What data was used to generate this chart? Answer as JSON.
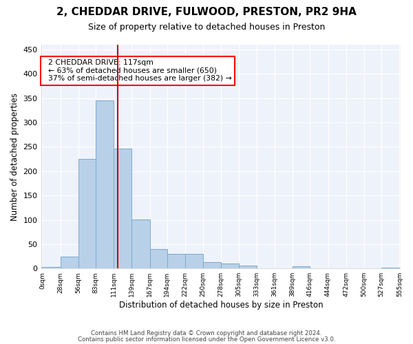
{
  "title1": "2, CHEDDAR DRIVE, FULWOOD, PRESTON, PR2 9HA",
  "title2": "Size of property relative to detached houses in Preston",
  "xlabel": "Distribution of detached houses by size in Preston",
  "ylabel": "Number of detached properties",
  "annotation_line1": "2 CHEDDAR DRIVE: 117sqm",
  "annotation_line2": "← 63% of detached houses are smaller (650)",
  "annotation_line3": "37% of semi-detached houses are larger (382) →",
  "property_size": 117,
  "bin_edges": [
    0,
    28,
    56,
    83,
    111,
    139,
    167,
    194,
    222,
    250,
    278,
    305,
    333,
    361,
    389,
    416,
    444,
    472,
    500,
    527,
    555
  ],
  "bin_labels": [
    "0sqm",
    "28sqm",
    "56sqm",
    "83sqm",
    "111sqm",
    "139sqm",
    "167sqm",
    "194sqm",
    "222sqm",
    "250sqm",
    "278sqm",
    "305sqm",
    "333sqm",
    "361sqm",
    "389sqm",
    "416sqm",
    "444sqm",
    "472sqm",
    "500sqm",
    "527sqm",
    "555sqm"
  ],
  "counts": [
    3,
    24,
    225,
    345,
    247,
    101,
    40,
    30,
    30,
    13,
    10,
    6,
    0,
    0,
    5,
    0,
    0,
    0,
    0,
    2
  ],
  "bar_color": "#b8d0e8",
  "bar_edge_color": "#7aaacf",
  "line_color": "#cc0000",
  "ylim": [
    0,
    460
  ],
  "yticks": [
    0,
    50,
    100,
    150,
    200,
    250,
    300,
    350,
    400,
    450
  ],
  "footer1": "Contains HM Land Registry data © Crown copyright and database right 2024.",
  "footer2": "Contains public sector information licensed under the Open Government Licence v3.0.",
  "bg_color": "#ffffff",
  "plot_bg_color": "#eef2fb"
}
